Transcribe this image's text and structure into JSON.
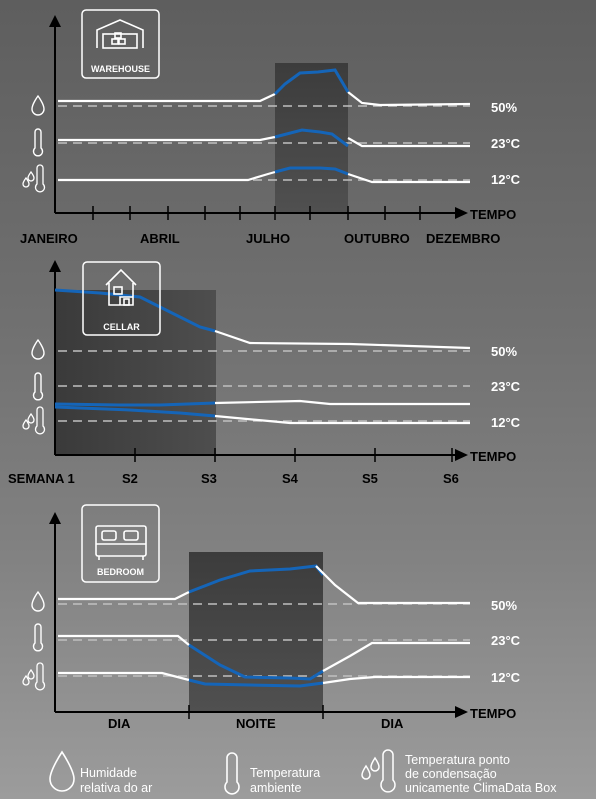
{
  "chart_data": [
    {
      "type": "line",
      "badge": "WAREHOUSE",
      "xlabel": "TEMPO",
      "x_tick_labels": [
        "JANEIRO",
        "ABRIL",
        "JULHO",
        "OUTUBRO",
        "DEZEMBRO"
      ],
      "right_labels": [
        "50%",
        "23°C",
        "12°C"
      ],
      "series": [
        {
          "kind": "humidity",
          "values": [
            [
              0,
              0
            ],
            [
              10,
              0
            ],
            [
              11,
              0.5
            ],
            [
              11.5,
              3
            ],
            [
              12,
              3.3
            ],
            [
              13,
              3.5
            ],
            [
              14,
              -0.5
            ],
            [
              14.5,
              -0.2
            ],
            [
              18,
              0
            ]
          ]
        },
        {
          "kind": "temperature",
          "values": [
            [
              0,
              0
            ],
            [
              10,
              0
            ],
            [
              11,
              0.6
            ],
            [
              12,
              1.2
            ],
            [
              13,
              1.0
            ],
            [
              14,
              -0.5
            ],
            [
              15,
              -0.5
            ],
            [
              18,
              -0.5
            ]
          ]
        },
        {
          "kind": "dew_point",
          "values": [
            [
              0,
              0
            ],
            [
              9,
              0
            ],
            [
              10,
              0.8
            ],
            [
              11,
              1.2
            ],
            [
              12,
              1.2
            ],
            [
              13,
              0.8
            ],
            [
              14,
              -0.2
            ],
            [
              15,
              -0.2
            ],
            [
              18,
              -0.2
            ]
          ]
        }
      ]
    },
    {
      "type": "line",
      "badge": "CELLAR",
      "xlabel": "TEMPO",
      "x_tick_labels": [
        "SEMANA 1",
        "S2",
        "S3",
        "S4",
        "S5",
        "S6"
      ],
      "right_labels": [
        "50%",
        "23°C",
        "12°C"
      ],
      "series": [
        {
          "kind": "humidity",
          "values": [
            [
              0,
              7
            ],
            [
              1,
              6.5
            ],
            [
              2,
              3
            ],
            [
              2.5,
              1
            ],
            [
              3,
              0.8
            ],
            [
              4,
              0.6
            ],
            [
              5,
              0.3
            ],
            [
              6,
              0
            ]
          ]
        },
        {
          "kind": "temperature",
          "values": [
            [
              0,
              -0.2
            ],
            [
              1,
              -0.2
            ],
            [
              2,
              0
            ],
            [
              3,
              0.2
            ],
            [
              3.5,
              -0.2
            ],
            [
              4,
              -0.2
            ],
            [
              6,
              -0.2
            ]
          ]
        },
        {
          "kind": "dew_point",
          "values": [
            [
              0,
              2
            ],
            [
              1,
              1.5
            ],
            [
              2,
              0.5
            ],
            [
              3,
              -0.3
            ],
            [
              4,
              -0.5
            ],
            [
              6,
              -0.5
            ]
          ]
        }
      ]
    },
    {
      "type": "line",
      "badge": "BEDROOM",
      "xlabel": "TEMPO",
      "x_tick_labels": [
        "DIA",
        "NOITE",
        "DIA"
      ],
      "right_labels": [
        "50%",
        "23°C",
        "12°C"
      ],
      "series": [
        {
          "kind": "humidity",
          "values": [
            [
              0,
              0
            ],
            [
              1,
              0
            ],
            [
              1.5,
              2
            ],
            [
              2,
              3.5
            ],
            [
              2.6,
              4
            ],
            [
              3,
              0
            ],
            [
              4,
              0
            ]
          ]
        },
        {
          "kind": "temperature",
          "values": [
            [
              0,
              0
            ],
            [
              1,
              0
            ],
            [
              1.5,
              -3
            ],
            [
              2,
              -4
            ],
            [
              2.6,
              -4
            ],
            [
              3,
              0
            ],
            [
              4,
              0
            ]
          ]
        },
        {
          "kind": "dew_point",
          "values": [
            [
              0,
              0
            ],
            [
              1,
              0
            ],
            [
              1.5,
              -1.5
            ],
            [
              2,
              -1.8
            ],
            [
              2.6,
              -2
            ],
            [
              3,
              -1
            ],
            [
              4,
              -1
            ]
          ]
        }
      ]
    }
  ],
  "legend": [
    {
      "icon": "drop-icon",
      "lines": [
        "Humidade",
        "relativa do ar"
      ]
    },
    {
      "icon": "thermometer-icon",
      "lines": [
        "Temperatura",
        "ambiente"
      ]
    },
    {
      "icon": "dew-point-icon",
      "lines": [
        "Temperatura ponto",
        "de condensação",
        "unicamente ClimaData Box"
      ]
    }
  ],
  "colors": {
    "line_white": "#ffffff",
    "line_blue": "#1565b8",
    "dashed": "#bdbdbd",
    "axis": "#000000",
    "shade": "#3a3a3a"
  }
}
